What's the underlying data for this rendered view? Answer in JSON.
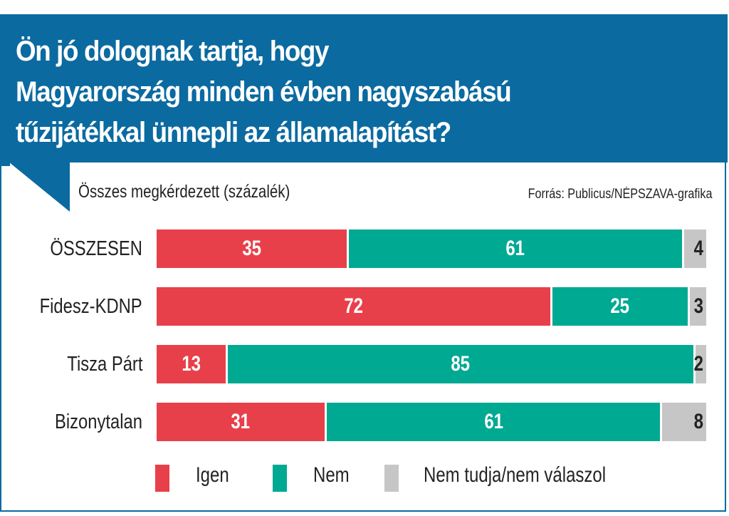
{
  "chart_data": {
    "type": "bar",
    "stacked": true,
    "orientation": "horizontal",
    "title": "Ön jó dolognak tartja, hogy\nMagyarország minden évben nagyszabású\ntűzijátékkal ünnepli az államalapítást?",
    "subtitle": "Összes megkérdezett (százalék)",
    "source": "Forrás: Publicus/NÉPSZAVA-grafika",
    "categories": [
      "ÖSSZESEN",
      "Fidesz-KDNP",
      "Tisza Párt",
      "Bizonytalan"
    ],
    "series": [
      {
        "name": "Igen",
        "color": "#e8404a",
        "values": [
          35,
          72,
          13,
          31
        ]
      },
      {
        "name": "Nem",
        "color": "#00a992",
        "values": [
          61,
          25,
          85,
          61
        ]
      },
      {
        "name": "Nem tudja/nem válaszol",
        "color": "#c6c6c6",
        "values": [
          4,
          3,
          2,
          8
        ]
      }
    ],
    "xlim": [
      0,
      100
    ],
    "legend_position": "bottom",
    "grid": false
  },
  "colors": {
    "header": "#0b6aa0"
  }
}
